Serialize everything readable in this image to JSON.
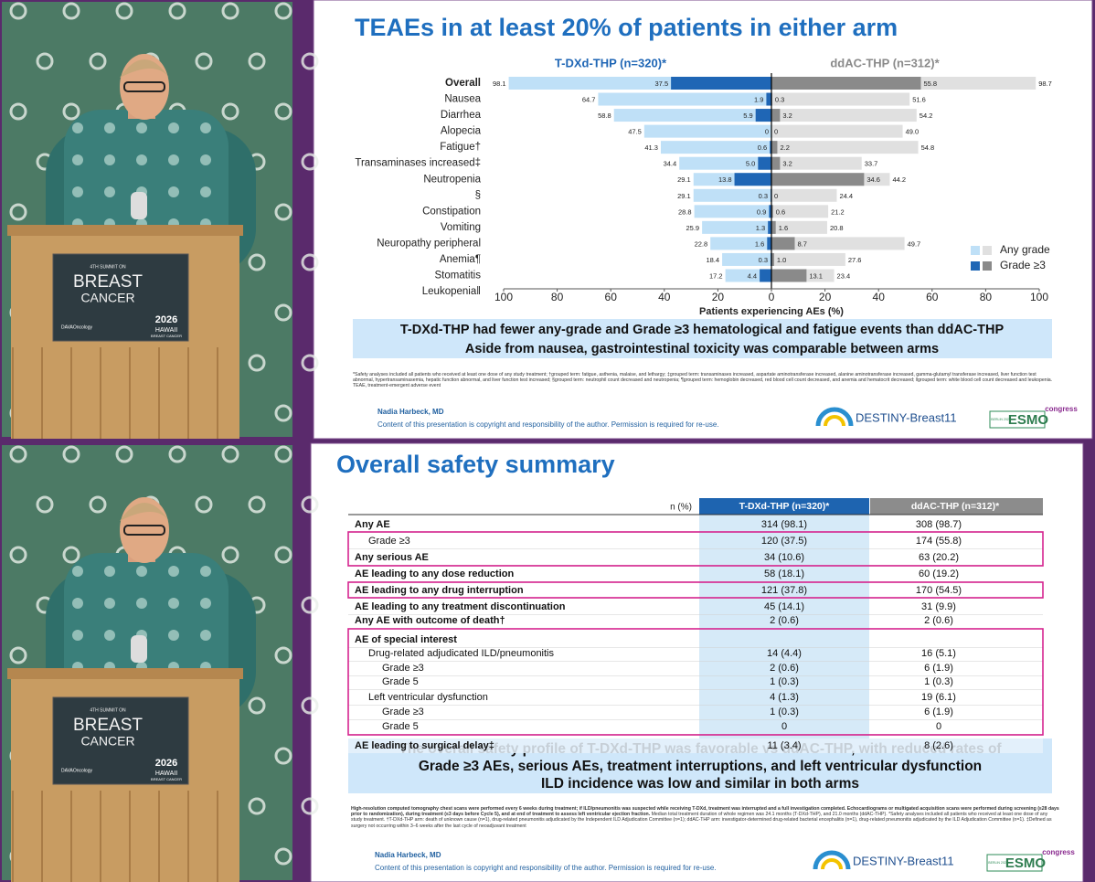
{
  "chart_data": {
    "type": "butterfly",
    "title": "TEAEs in at least 20% of patients in either arm",
    "arms": [
      "T-DXd-THP (n=320)*",
      "ddAC-THP (n=312)*"
    ],
    "categories": [
      "Overall",
      "Nausea",
      "Diarrhea",
      "Alopecia",
      "Fatigue†",
      "Transaminases increased‡",
      "Neutropenia",
      "§",
      "Constipation",
      "Vomiting",
      "Neuropathy peripheral",
      "Anemia¶",
      "Stomatitis",
      "Leukopenia‖"
    ],
    "series": [
      {
        "name": "Any grade",
        "side": "left",
        "color": "#bfe0f7",
        "values": [
          98.1,
          64.7,
          58.8,
          47.5,
          41.3,
          34.4,
          29.1,
          29.1,
          28.8,
          25.9,
          22.8,
          18.4,
          17.2,
          null
        ],
        "value_labels": [
          "98.1",
          "64.7",
          "58.8",
          "47.5",
          "41.3",
          "34.4",
          "29.1",
          "29.1",
          "28.8",
          "25.9",
          "22.8",
          "18.4",
          "17.2",
          null
        ]
      },
      {
        "name": "Grade ≥3",
        "side": "left",
        "color": "#1f66b5",
        "values": [
          37.5,
          1.9,
          5.9,
          0,
          0.6,
          5.0,
          13.8,
          0.3,
          0.9,
          1.3,
          1.6,
          0.3,
          4.4,
          null
        ],
        "value_labels": [
          "37.5",
          "1.9",
          "5.9",
          "0",
          "0.6",
          "5.0",
          "13.8",
          "0.3",
          "0.9",
          "1.3",
          "1.6",
          "0.3",
          "4.4",
          null
        ]
      },
      {
        "name": "Any grade",
        "side": "right",
        "color": "#e0e0e0",
        "values": [
          98.7,
          51.6,
          54.2,
          49.0,
          54.8,
          33.7,
          44.2,
          24.4,
          21.2,
          20.8,
          49.7,
          27.6,
          23.4,
          null
        ],
        "value_labels": [
          "98.7",
          "51.6",
          "54.2",
          "49.0",
          "54.8",
          "33.7",
          "44.2",
          "24.4",
          "21.2",
          "20.8",
          "49.7",
          "27.6",
          "23.4",
          null
        ]
      },
      {
        "name": "Grade ≥3",
        "side": "right",
        "color": "#8a8a8a",
        "values": [
          55.8,
          0.3,
          3.2,
          0,
          2.2,
          3.2,
          34.6,
          0,
          0.6,
          1.6,
          8.7,
          1.0,
          13.1,
          null
        ],
        "value_labels": [
          "55.8",
          "0.3",
          "3.2",
          "0",
          "2.2",
          "3.2",
          "34.6",
          "0",
          "0.6",
          "1.6",
          "8.7",
          "1.0",
          "13.1",
          null
        ]
      }
    ],
    "xlabel": "Patients experiencing AEs (%)",
    "xlim": [
      0,
      100
    ],
    "xticks": [
      0,
      20,
      40,
      60,
      80,
      100
    ],
    "legend": "bottom-right",
    "callout": [
      "T-DXd-THP had fewer any-grade and Grade ≥3 hematological and fatigue events than ddAC-THP",
      "Aside from nausea, gastrointestinal toxicity was comparable between arms"
    ],
    "footnote": "*Safety analyses included all patients who received at least one dose of any study treatment; †grouped term: fatigue, asthenia, malaise, and lethargy; ‡grouped term: transaminases increased, aspartate aminotransferase increased, alanine aminotransferase increased, gamma-glutamyl transferase increased, liver function test abnormal, hypertransaminasemia, hepatic function abnormal, and liver function test increased; §grouped term: neutrophil count decreased and neutropenia; ¶grouped term: hemoglobin decreased, red blood cell count decreased, and anemia and hematocrit decreased; ‖grouped term: white blood cell count decreased and leukopenia. TEAE, treatment-emergent adverse event"
  },
  "table": {
    "title": "Overall safety summary",
    "header": [
      "n (%)",
      "T-DXd-THP (n=320)*",
      "ddAC-THP (n=312)*"
    ],
    "rows": [
      {
        "label": "Any AE",
        "level": 0,
        "bold": true,
        "values": [
          "314 (98.1)",
          "308 (98.7)"
        ]
      },
      {
        "label": "Grade ≥3",
        "level": 1,
        "bold": false,
        "values": [
          "120 (37.5)",
          "174 (55.8)"
        ]
      },
      {
        "label": "Any serious AE",
        "level": 0,
        "bold": true,
        "values": [
          "34 (10.6)",
          "63 (20.2)"
        ]
      },
      {
        "label": "AE leading to any dose reduction",
        "level": 0,
        "bold": true,
        "values": [
          "58 (18.1)",
          "60 (19.2)"
        ]
      },
      {
        "label": "AE leading to any drug interruption",
        "level": 0,
        "bold": true,
        "values": [
          "121 (37.8)",
          "170 (54.5)"
        ]
      },
      {
        "label": "AE leading to any treatment discontinuation",
        "level": 0,
        "bold": true,
        "values": [
          "45 (14.1)",
          "31 (9.9)"
        ]
      },
      {
        "label": "Any AE with outcome of death†",
        "level": 0,
        "bold": true,
        "values": [
          "2 (0.6)",
          "2 (0.6)"
        ]
      },
      {
        "label": "AE of special interest",
        "level": 0,
        "bold": true,
        "values": []
      },
      {
        "label": "Drug-related adjudicated ILD/pneumonitis",
        "level": 1,
        "bold": false,
        "values": [
          "14 (4.4)",
          "16 (5.1)"
        ]
      },
      {
        "label": "Grade ≥3",
        "level": 2,
        "bold": false,
        "values": [
          "2 (0.6)",
          "6 (1.9)"
        ]
      },
      {
        "label": "Grade 5",
        "level": 2,
        "bold": false,
        "values": [
          "1 (0.3)",
          "1 (0.3)"
        ]
      },
      {
        "label": "Left ventricular dysfunction",
        "level": 1,
        "bold": false,
        "values": [
          "4 (1.3)",
          "19 (6.1)"
        ]
      },
      {
        "label": "Grade ≥3",
        "level": 2,
        "bold": false,
        "values": [
          "1 (0.3)",
          "6 (1.9)"
        ]
      },
      {
        "label": "Grade 5",
        "level": 2,
        "bold": false,
        "values": [
          "0",
          "0"
        ]
      },
      {
        "label": "AE leading to surgical delay‡",
        "level": 0,
        "bold": true,
        "values": [
          "11 (3.4)",
          "8 (2.6)"
        ]
      }
    ],
    "callout": [
      "The overall safety profile of T-DXd-THP was favorable vs ddAC-THP, with reduced rates of",
      "Grade ≥3 AEs, serious AEs, treatment interruptions, and left ventricular dysfunction",
      "ILD incidence was low and similar in both arms"
    ],
    "footnote_bold": "High-resolution computed tomography chest scans were performed every 6 weeks during treatment; if ILD/pneumonitis was suspected while receiving T-DXd, treatment was interrupted and a full investigation completed. Echocardiograms or multigated acquisition scans were performed during screening (≤28 days prior to randomization), during treatment (≤3 days before Cycle 5), and at end of treatment to assess left ventricular ejection fraction.",
    "footnote": "Median total treatment duration of whole regimen was 24.1 months (T-DXd-THP), and 21.0 months (ddAC-THP). *Safety analyses included all patients who received at least one dose of any study treatment. †T-DXd-THP arm: death of unknown cause (n=1), drug-related pneumonitis adjudicated by the Independent ILD Adjudication Committee (n=1); ddAC-THP arm: investigator-determined drug-related bacterial encephalitis (n=1), drug-related pneumonitis adjudicated by the ILD Adjudication Committee (n=1). ‡Defined as surgery not occurring within 3–6 weeks after the last cycle of neoadjuvant treatment"
  },
  "footer": {
    "author": "Nadia Harbeck, MD",
    "copyright": "Content of this presentation is copyright and responsibility of the author. Permission is required for re-use.",
    "trial": "DESTINY-Breast11",
    "congress": "ESMO",
    "congress_sup": "congress",
    "congress_place": "BERLIN 2025"
  },
  "video": {
    "sign": [
      "4TH SUMMIT ON",
      "BREAST",
      "CANCER"
    ],
    "badge": [
      "2026",
      "HAWAII",
      "BREAST CANCER"
    ],
    "sponsor": "DAVAOncology"
  }
}
